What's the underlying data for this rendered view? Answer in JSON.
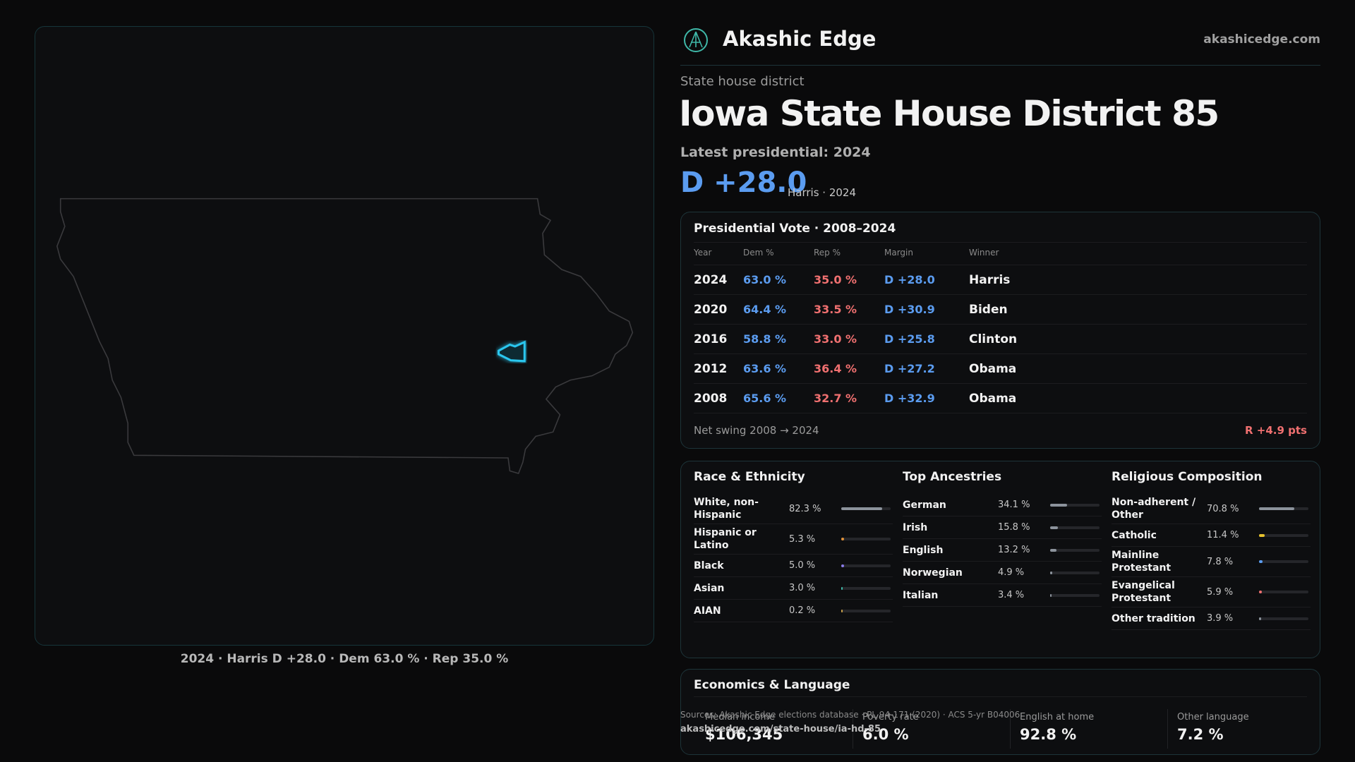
{
  "header": {
    "brand": "Akashic Edge",
    "site": "akashicedge.com"
  },
  "district": {
    "kind": "State house district",
    "title": "Iowa State House District 85",
    "latest": "Latest presidential: 2024",
    "margin": "D +28.0",
    "margin_note": "Harris · 2024"
  },
  "map": {
    "caption": "2024 · Harris D +28.0 · Dem 63.0 % · Rep 35.0 %"
  },
  "presidential": {
    "title": "Presidential Vote · 2008–2024",
    "columns": [
      "Year",
      "Dem %",
      "Rep %",
      "Margin",
      "Winner"
    ],
    "rows": [
      [
        "2024",
        "63.0 %",
        "35.0 %",
        "D +28.0",
        "Harris"
      ],
      [
        "2020",
        "64.4 %",
        "33.5 %",
        "D +30.9",
        "Biden"
      ],
      [
        "2016",
        "58.8 %",
        "33.0 %",
        "D +25.8",
        "Clinton"
      ],
      [
        "2012",
        "63.6 %",
        "36.4 %",
        "D +27.2",
        "Obama"
      ],
      [
        "2008",
        "65.6 %",
        "32.7 %",
        "D +32.9",
        "Obama"
      ]
    ],
    "swing_label": "Net swing 2008 → 2024",
    "swing_value": "R +4.9 pts"
  },
  "panels": [
    {
      "title": "Race & Ethnicity",
      "items": [
        {
          "label": "White, non-Hispanic",
          "value": 82.3,
          "value_label": "82.3 %",
          "color": "#8c939c"
        },
        {
          "label": "Hispanic or Latino",
          "value": 5.3,
          "value_label": "5.3 %",
          "color": "#e0913a"
        },
        {
          "label": "Black",
          "value": 5.0,
          "value_label": "5.0 %",
          "color": "#8a7be8"
        },
        {
          "label": "Asian",
          "value": 3.0,
          "value_label": "3.0 %",
          "color": "#3fb8a8"
        },
        {
          "label": "AIAN",
          "value": 0.2,
          "value_label": "0.2 %",
          "color": "#c9a14a"
        }
      ]
    },
    {
      "title": "Top Ancestries",
      "items": [
        {
          "label": "German",
          "value": 34.1,
          "value_label": "34.1 %",
          "color": "#8c939c"
        },
        {
          "label": "Irish",
          "value": 15.8,
          "value_label": "15.8 %",
          "color": "#8c939c"
        },
        {
          "label": "English",
          "value": 13.2,
          "value_label": "13.2 %",
          "color": "#8c939c"
        },
        {
          "label": "Norwegian",
          "value": 4.9,
          "value_label": "4.9 %",
          "color": "#8c939c"
        },
        {
          "label": "Italian",
          "value": 3.4,
          "value_label": "3.4 %",
          "color": "#8c939c"
        }
      ]
    },
    {
      "title": "Religious Composition",
      "items": [
        {
          "label": "Non-adherent / Other",
          "value": 70.8,
          "value_label": "70.8 %",
          "color": "#8c939c"
        },
        {
          "label": "Catholic",
          "value": 11.4,
          "value_label": "11.4 %",
          "color": "#e6c22e"
        },
        {
          "label": "Mainline Protestant",
          "value": 7.8,
          "value_label": "7.8 %",
          "color": "#5b9cf0"
        },
        {
          "label": "Evangelical Protestant",
          "value": 5.9,
          "value_label": "5.9 %",
          "color": "#f07070"
        },
        {
          "label": "Other tradition",
          "value": 3.9,
          "value_label": "3.9 %",
          "color": "#8c939c"
        }
      ]
    }
  ],
  "economics": {
    "title": "Economics & Language",
    "stats": [
      {
        "label": "Median income",
        "value": "$106,345"
      },
      {
        "label": "Poverty rate",
        "value": "6.0 %"
      },
      {
        "label": "English at home",
        "value": "92.8 %"
      },
      {
        "label": "Other language",
        "value": "7.2 %"
      }
    ]
  },
  "footer": {
    "sources": "Sources: Akashic Edge elections database · PL 94-171 (2020) · ACS 5-yr B04006",
    "url": "akashicedge.com/state-house/ia-hd-85"
  }
}
